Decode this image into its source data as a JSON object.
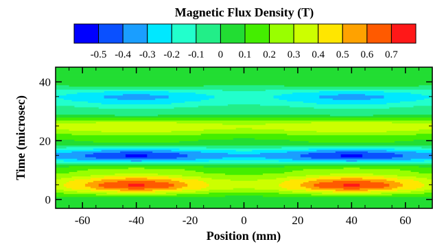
{
  "chart_data": {
    "type": "heatmap",
    "title": "Magnetic Flux Density (T)",
    "xlabel": "Position (mm)",
    "ylabel": "Time (microsec)",
    "xlim": [
      -70,
      70
    ],
    "ylim": [
      -3,
      45
    ],
    "xticks": [
      -60,
      -40,
      -20,
      0,
      20,
      40,
      60
    ],
    "yticks": [
      0,
      20,
      40
    ],
    "colorbar": {
      "levels": [
        -0.5,
        -0.4,
        -0.3,
        -0.2,
        -0.1,
        0,
        0.1,
        0.2,
        0.3,
        0.4,
        0.5,
        0.6,
        0.7
      ],
      "colors": [
        "#0000ff",
        "#0a50ff",
        "#1a9eff",
        "#00e8ff",
        "#22ffcc",
        "#22ee88",
        "#22dd33",
        "#44ee00",
        "#99ff00",
        "#ccff00",
        "#ffe600",
        "#ffa200",
        "#ff5a00",
        "#ff1818"
      ]
    },
    "field": {
      "x": [
        -70,
        -60,
        -50,
        -40,
        -30,
        -20,
        -10,
        0,
        10,
        20,
        30,
        40,
        50,
        60,
        70
      ],
      "t": [
        -3,
        0,
        5,
        10,
        15,
        20,
        25,
        30,
        35,
        40,
        45
      ],
      "spatial_profile": [
        0.3,
        0.55,
        0.85,
        1.0,
        0.85,
        0.55,
        0.3,
        0.2,
        0.3,
        0.55,
        0.85,
        1.0,
        0.85,
        0.55,
        0.3
      ],
      "time_peaks": [
        {
          "t": 0,
          "baseline": 0.05,
          "peak": 0.05
        },
        {
          "t": 5,
          "baseline": 0.5,
          "peak": 0.72
        },
        {
          "t": 10,
          "baseline": 0.2,
          "peak": 0.25
        },
        {
          "t": 15,
          "baseline": -0.4,
          "peak": -0.52
        },
        {
          "t": 20,
          "baseline": 0.1,
          "peak": 0.12
        },
        {
          "t": 25,
          "baseline": 0.35,
          "peak": 0.4
        },
        {
          "t": 30,
          "baseline": -0.05,
          "peak": -0.08
        },
        {
          "t": 35,
          "baseline": -0.25,
          "peak": -0.34
        },
        {
          "t": 40,
          "baseline": 0.05,
          "peak": 0.08
        },
        {
          "t": 45,
          "baseline": 0.1,
          "peak": 0.1
        }
      ]
    }
  }
}
